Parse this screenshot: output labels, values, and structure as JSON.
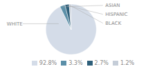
{
  "chart_data": {
    "type": "pie",
    "categories": [
      "WHITE",
      "ASIAN",
      "HISPANIC",
      "BLACK"
    ],
    "values": [
      92.8,
      3.3,
      2.7,
      1.2
    ],
    "value_labels": [
      "92.8%",
      "3.3%",
      "2.7%",
      "1.2%"
    ],
    "colors": [
      "#d4dce8",
      "#5b8fa8",
      "#2e5f7a",
      "#c5cdd8"
    ],
    "legend": "bottom"
  }
}
